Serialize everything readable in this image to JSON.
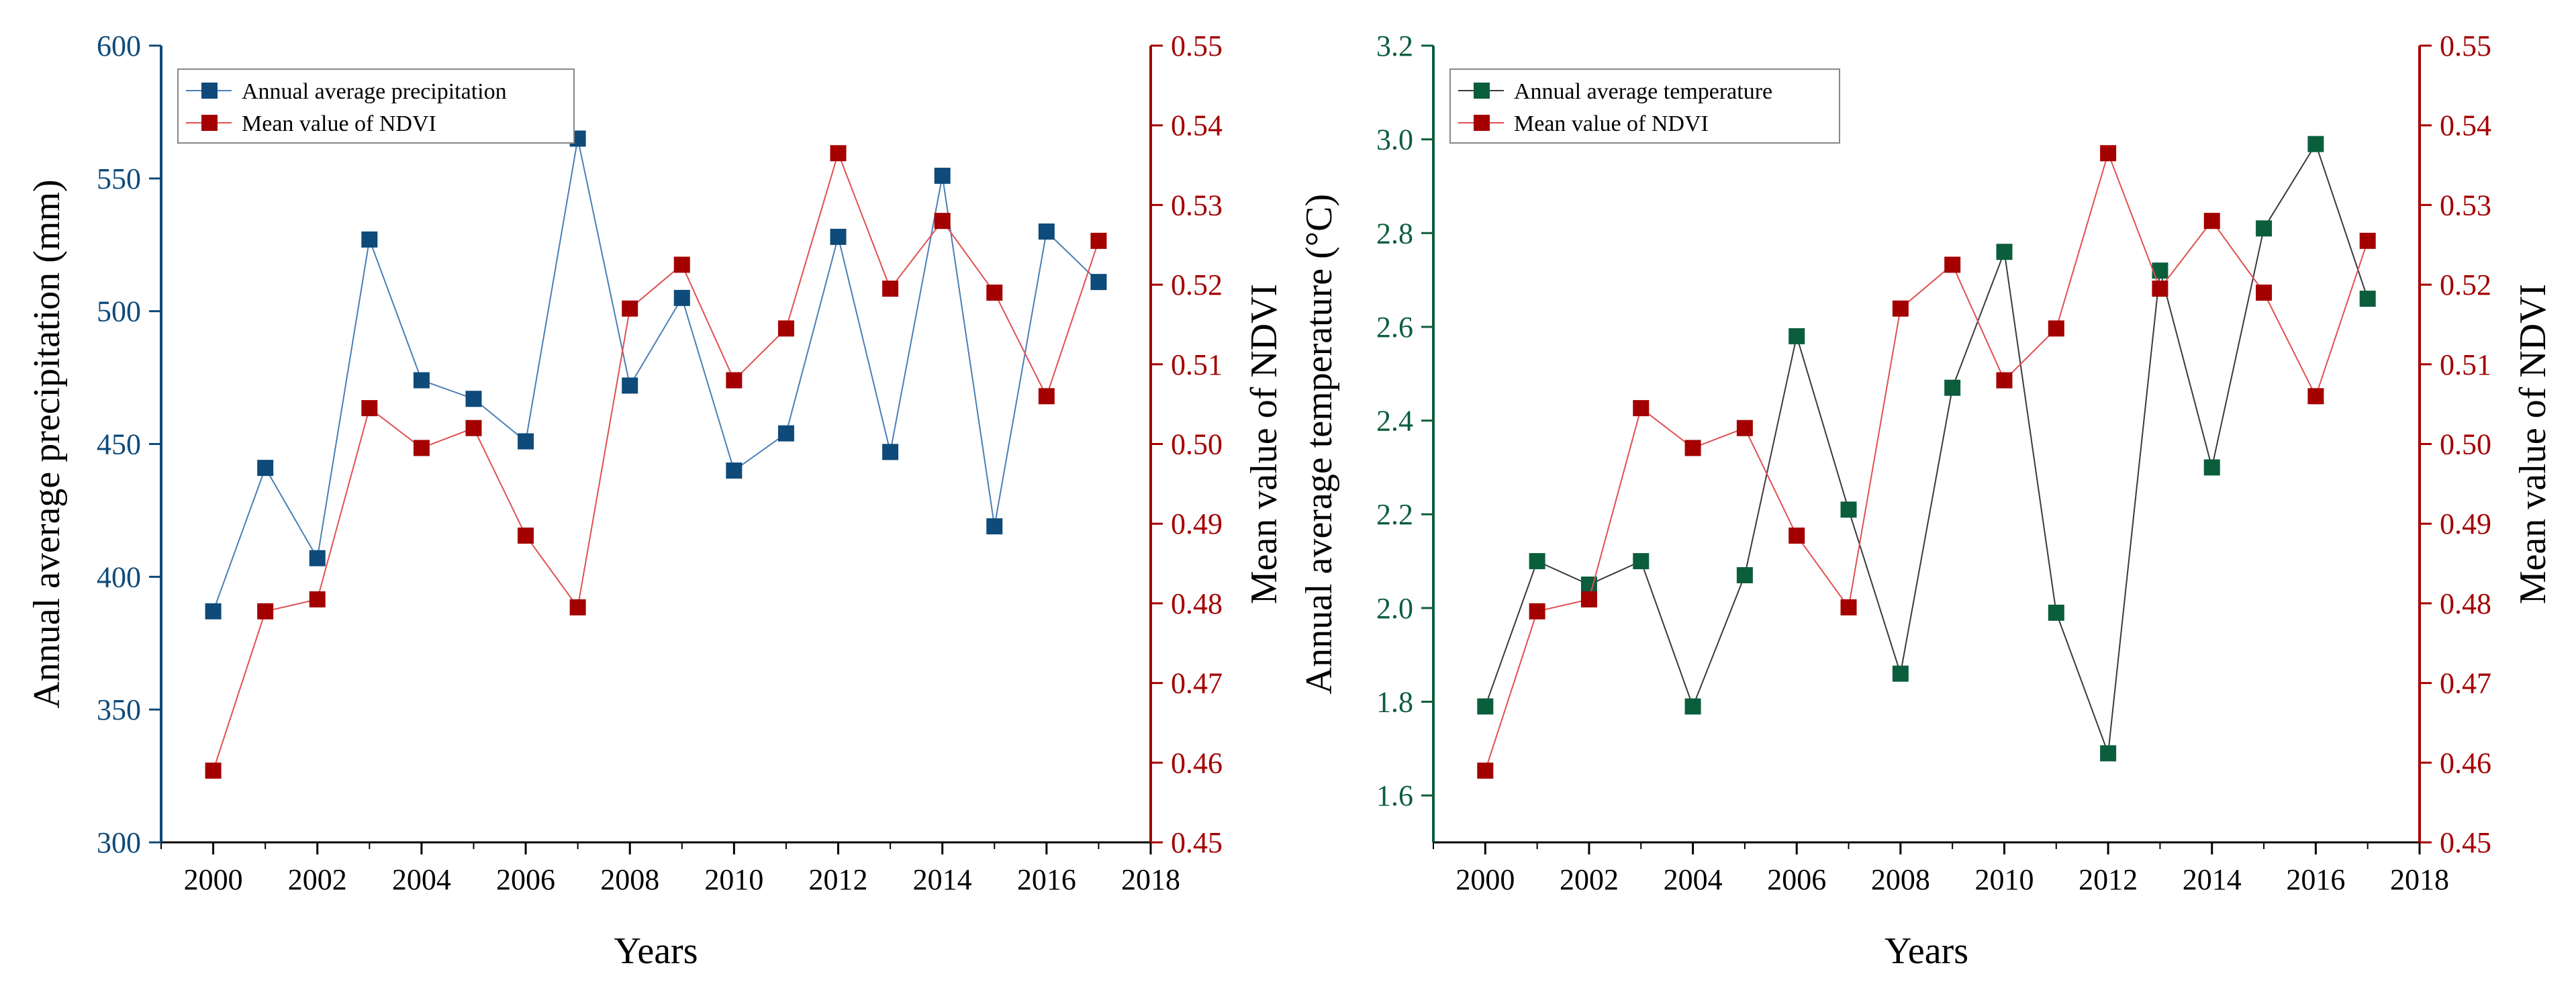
{
  "chart_data": [
    {
      "type": "line",
      "x_label": "Years",
      "y_left_label": "Annual average precipitation (mm)",
      "y_right_label": "Mean value of NDVI",
      "x_ticks": [
        "2000",
        "2002",
        "2004",
        "2006",
        "2008",
        "2010",
        "2012",
        "2014",
        "2016",
        "2018"
      ],
      "y_left_ticks": [
        "300",
        "350",
        "400",
        "450",
        "500",
        "550",
        "600"
      ],
      "y_right_ticks": [
        "0.45",
        "0.46",
        "0.47",
        "0.48",
        "0.49",
        "0.50",
        "0.51",
        "0.52",
        "0.53",
        "0.54",
        "0.55"
      ],
      "x_range": [
        1999,
        2018
      ],
      "y_left_range": [
        300,
        600
      ],
      "y_right_range": [
        0.45,
        0.55
      ],
      "left_color": "#0E4A7A",
      "right_color": "#A40000",
      "legend_position": "top-left",
      "series": [
        {
          "name": "Annual average precipitation",
          "axis": "left",
          "color": "#0E4A7A",
          "line_color": "#4A7FB5",
          "x": [
            2000,
            2001,
            2002,
            2003,
            2004,
            2005,
            2006,
            2007,
            2008,
            2009,
            2010,
            2011,
            2012,
            2013,
            2014,
            2015,
            2016,
            2017
          ],
          "values": [
            387,
            441,
            407,
            527,
            474,
            467,
            451,
            565,
            472,
            505,
            440,
            454,
            528,
            447,
            551,
            419,
            530,
            511
          ]
        },
        {
          "name": "Mean value of NDVI",
          "axis": "right",
          "color": "#A40000",
          "line_color": "#E05050",
          "x": [
            2000,
            2001,
            2002,
            2003,
            2004,
            2005,
            2006,
            2007,
            2008,
            2009,
            2010,
            2011,
            2012,
            2013,
            2014,
            2015,
            2016,
            2017
          ],
          "values": [
            0.459,
            0.479,
            0.4805,
            0.5045,
            0.4995,
            0.502,
            0.4885,
            0.4795,
            0.517,
            0.5225,
            0.508,
            0.5145,
            0.5365,
            0.5195,
            0.528,
            0.519,
            0.506,
            0.5255
          ]
        }
      ]
    },
    {
      "type": "line",
      "x_label": "Years",
      "y_left_label": "Annual average temperature (°C)",
      "y_right_label": "Mean value of NDVI",
      "x_ticks": [
        "2000",
        "2002",
        "2004",
        "2006",
        "2008",
        "2010",
        "2012",
        "2014",
        "2016",
        "2018"
      ],
      "y_left_ticks": [
        "1.6",
        "1.8",
        "2.0",
        "2.2",
        "2.4",
        "2.6",
        "2.8",
        "3.0",
        "3.2"
      ],
      "y_right_ticks": [
        "0.45",
        "0.46",
        "0.47",
        "0.48",
        "0.49",
        "0.50",
        "0.51",
        "0.52",
        "0.53",
        "0.54",
        "0.55"
      ],
      "x_range": [
        1999,
        2018
      ],
      "y_left_range": [
        1.5,
        3.2
      ],
      "y_right_range": [
        0.45,
        0.55
      ],
      "left_color": "#0B5E3C",
      "right_color": "#A40000",
      "legend_position": "top-left",
      "series": [
        {
          "name": "Annual average temperature",
          "axis": "left",
          "color": "#0B5E3C",
          "line_color": "#3A3A3A",
          "x": [
            2000,
            2001,
            2002,
            2003,
            2004,
            2005,
            2006,
            2007,
            2008,
            2009,
            2010,
            2011,
            2012,
            2013,
            2014,
            2015,
            2016,
            2017
          ],
          "values": [
            1.79,
            2.1,
            2.05,
            2.1,
            1.79,
            2.07,
            2.58,
            2.21,
            1.86,
            2.47,
            2.76,
            1.99,
            1.69,
            2.72,
            2.3,
            2.81,
            2.99,
            2.66
          ]
        },
        {
          "name": "Mean value of NDVI",
          "axis": "right",
          "color": "#A40000",
          "line_color": "#E05050",
          "x": [
            2000,
            2001,
            2002,
            2003,
            2004,
            2005,
            2006,
            2007,
            2008,
            2009,
            2010,
            2011,
            2012,
            2013,
            2014,
            2015,
            2016,
            2017
          ],
          "values": [
            0.459,
            0.479,
            0.4805,
            0.5045,
            0.4995,
            0.502,
            0.4885,
            0.4795,
            0.517,
            0.5225,
            0.508,
            0.5145,
            0.5365,
            0.5195,
            0.528,
            0.519,
            0.506,
            0.5255
          ]
        }
      ]
    }
  ]
}
